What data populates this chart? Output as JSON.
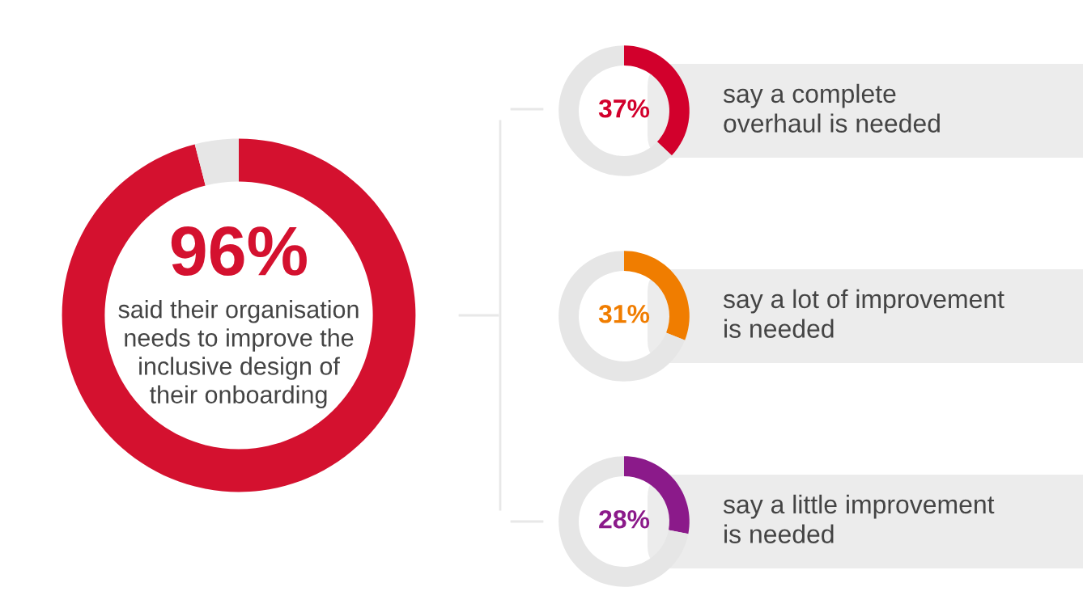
{
  "chart_data": [
    {
      "type": "donut",
      "categories": [
        null,
        null
      ],
      "values": [
        96,
        4
      ],
      "colors": [
        "#d4112f",
        "#e6e6e6"
      ],
      "value_labels": [
        "96%",
        null
      ],
      "annotations": [
        "said their organisation\nneeds to improve the\ninclusive design of\ntheir onboarding"
      ]
    },
    {
      "type": "donut",
      "categories": [
        null,
        null
      ],
      "values": [
        37,
        63
      ],
      "colors": [
        "#d2002c",
        "#e6e6e6"
      ],
      "value_labels": [
        "37%",
        null
      ],
      "annotations": [
        "say a complete\noverhaul is needed"
      ]
    },
    {
      "type": "donut",
      "categories": [
        null,
        null
      ],
      "values": [
        31,
        69
      ],
      "colors": [
        "#f07d00",
        "#e6e6e6"
      ],
      "value_labels": [
        "31%",
        null
      ],
      "annotations": [
        "say a lot of improvement\nis needed"
      ]
    },
    {
      "type": "donut",
      "categories": [
        null,
        null
      ],
      "values": [
        28,
        72
      ],
      "colors": [
        "#8b1a8a",
        "#e6e6e6"
      ],
      "value_labels": [
        "28%",
        null
      ],
      "annotations": [
        "say a little improvement\nis needed"
      ]
    }
  ]
}
